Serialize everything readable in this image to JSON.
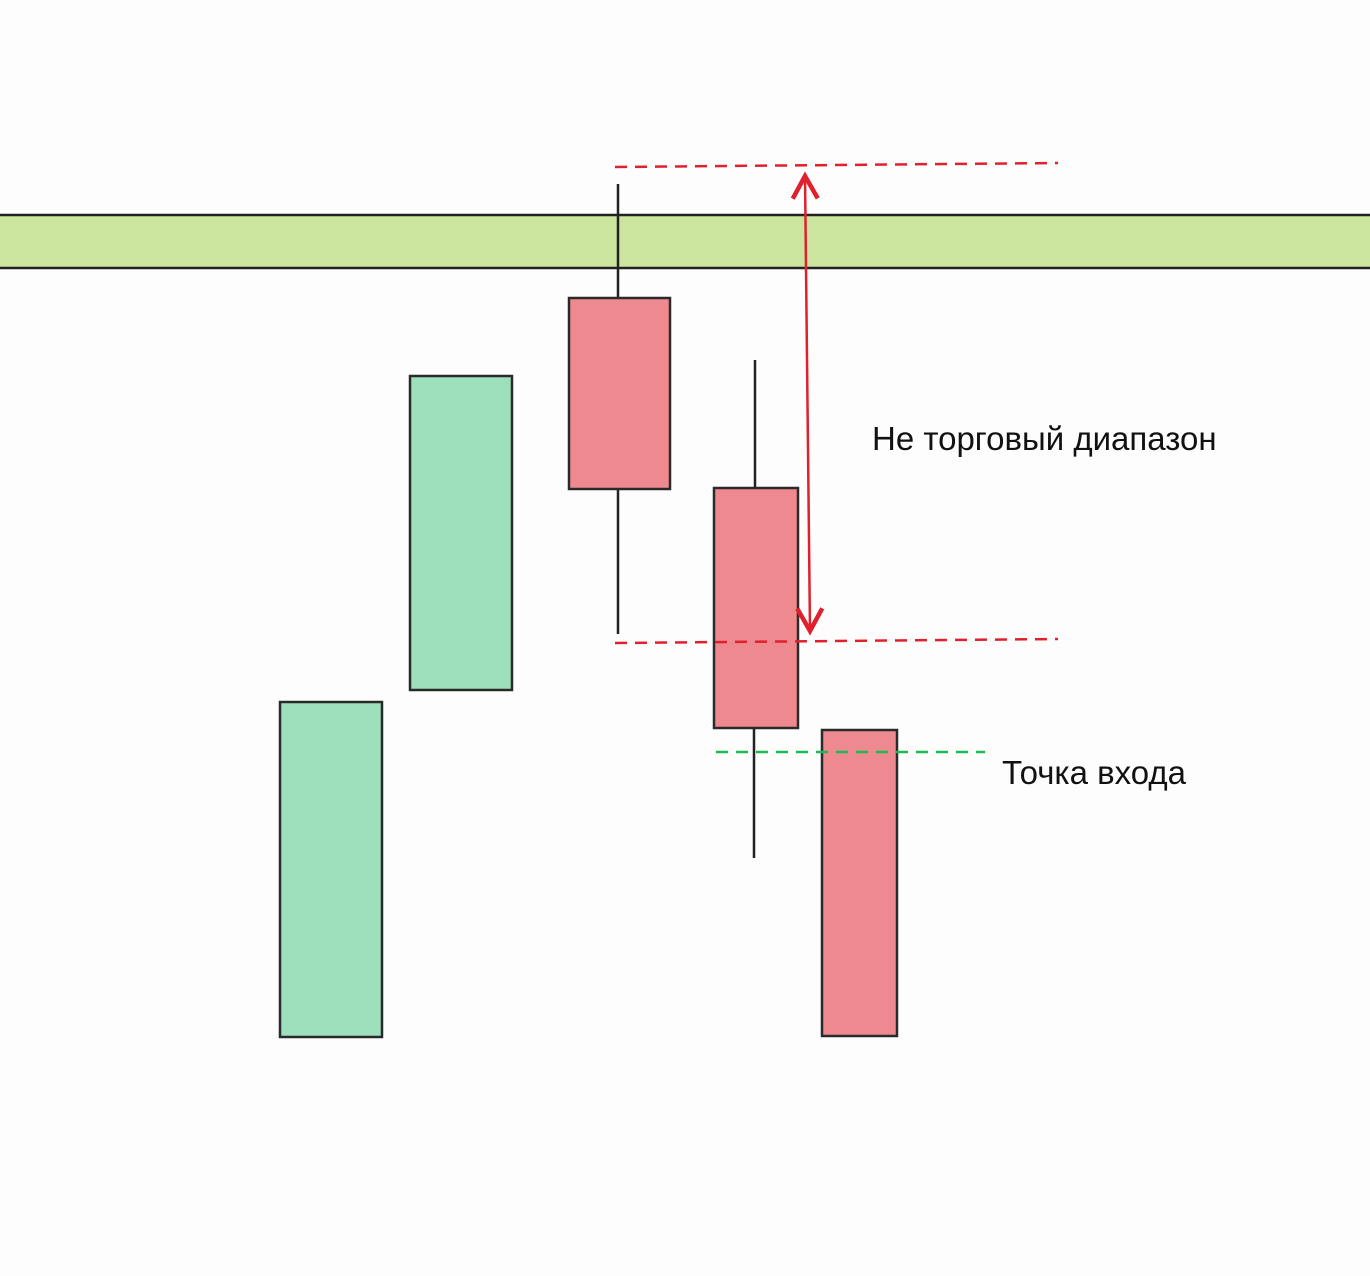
{
  "annotations": {
    "range_label": "Не торговый диапазон",
    "entry_label": "Точка входа"
  }
}
